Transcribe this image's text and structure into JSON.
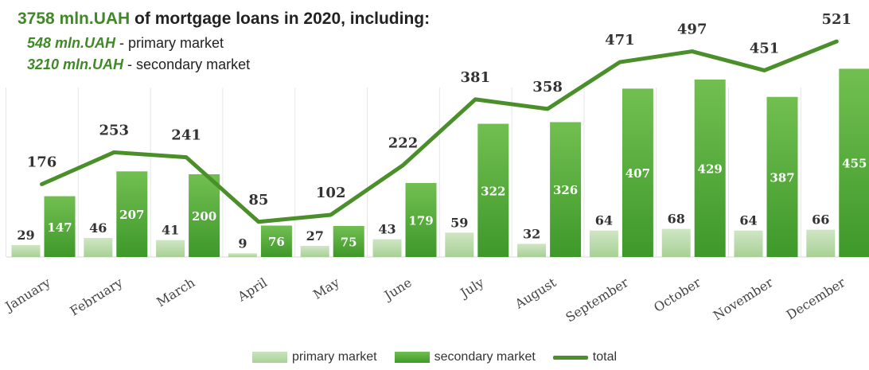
{
  "header": {
    "line1_value": "3758  mln.UAH",
    "line1_text": " of mortgage loans in 2020, including:",
    "line2_value": "548 mln.UAH",
    "line2_text": " - primary market",
    "line3_value": "3210 mln.UAH",
    "line3_text": " - secondary market"
  },
  "legend": {
    "primary": "primary market",
    "secondary": "secondary market",
    "total": "total"
  },
  "colors": {
    "primary": "#b5d9a5",
    "secondary": "#5aaf3c",
    "total": "#4a8f2a",
    "title_accent": "#3f8a26"
  },
  "chart_data": {
    "type": "bar",
    "categories": [
      "January",
      "February",
      "March",
      "April",
      "May",
      "June",
      "July",
      "August",
      "September",
      "October",
      "November",
      "December"
    ],
    "series": [
      {
        "name": "primary market",
        "type": "bar",
        "values": [
          29,
          46,
          41,
          9,
          27,
          43,
          59,
          32,
          64,
          68,
          64,
          66
        ]
      },
      {
        "name": "secondary market",
        "type": "bar",
        "values": [
          147,
          207,
          200,
          76,
          75,
          179,
          322,
          326,
          407,
          429,
          387,
          455
        ]
      },
      {
        "name": "total",
        "type": "line",
        "values": [
          176,
          253,
          241,
          85,
          102,
          222,
          381,
          358,
          471,
          497,
          451,
          521
        ]
      }
    ],
    "ylim": [
      0,
      560
    ],
    "grid": false,
    "legend": "bottom"
  }
}
